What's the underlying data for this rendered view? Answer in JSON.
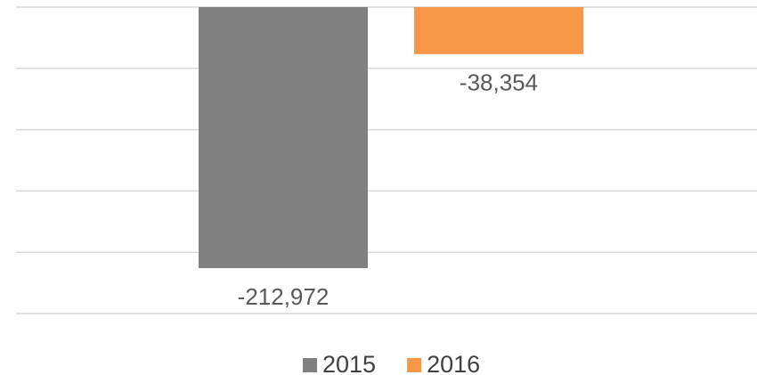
{
  "chart_data": {
    "type": "bar",
    "categories": [
      null
    ],
    "series": [
      {
        "name": "2015",
        "color": "#808080",
        "values": [
          -212972
        ],
        "value_labels": [
          "-212,972"
        ]
      },
      {
        "name": "2016",
        "color": "#f79646",
        "values": [
          -38354
        ],
        "value_labels": [
          "-38,354"
        ]
      }
    ],
    "ylim": [
      -250000,
      0
    ],
    "yticks": [
      -250000,
      -200000,
      -150000,
      -100000,
      -50000,
      0
    ],
    "grid": true,
    "legend": "bottom"
  }
}
